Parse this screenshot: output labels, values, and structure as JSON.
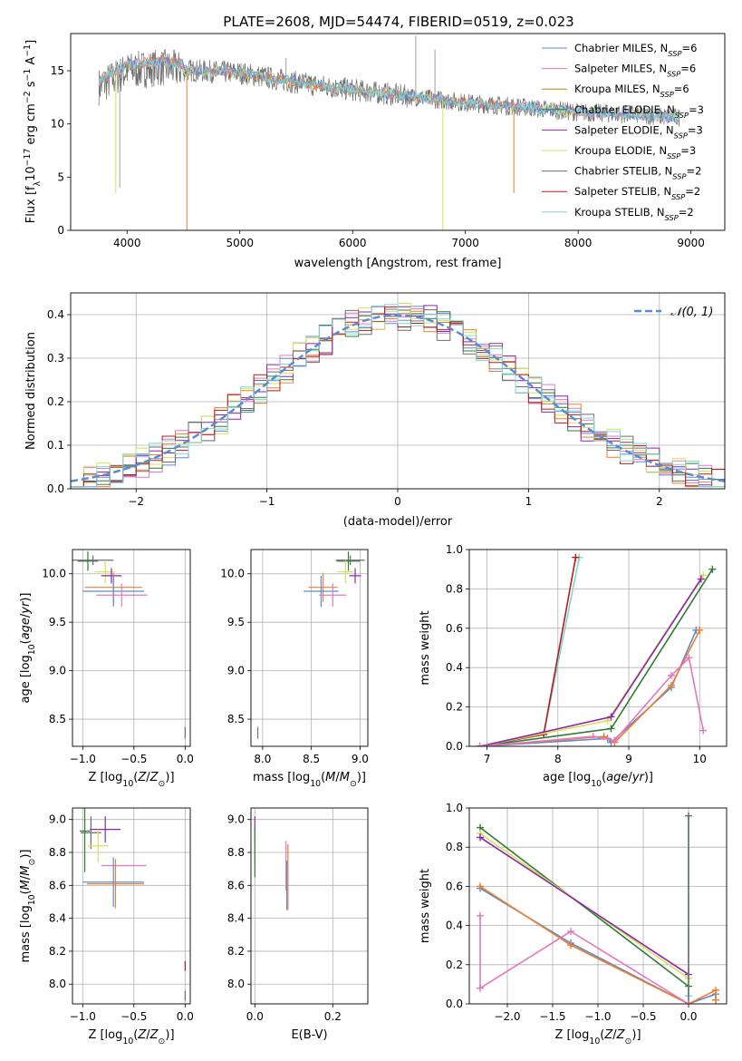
{
  "figure": {
    "title": "PLATE=2608, MJD=54474, FIBERID=0519, z=0.023"
  },
  "colors": {
    "Chabrier MILES": "#5b8bd5",
    "Salpeter MILES": "#e377c2",
    "Kroupa MILES": "#b8860b",
    "Chabrier ELODIE": "#2e7d32",
    "Salpeter ELODIE": "#8e24aa",
    "Kroupa ELODIE": "#d4e157",
    "Chabrier STELIB": "#6d6d6d",
    "Salpeter STELIB": "#b71c1c",
    "Kroupa STELIB": "#7fd6d6",
    "accent_orange": "#ef7f2a",
    "gauss": "#5b8bd5"
  },
  "chart_data": [
    {
      "id": "spectrum",
      "type": "line",
      "xlabel": "wavelength [Angstrom, rest frame]",
      "ylabel": "Flux [fλ10⁻¹⁷ erg cm⁻² s⁻¹ A⁻¹]",
      "xlim": [
        3500,
        9300
      ],
      "ylim": [
        0,
        18.5
      ],
      "xticks": [
        4000,
        5000,
        6000,
        7000,
        8000,
        9000
      ],
      "yticks": [
        0,
        5,
        10,
        15
      ],
      "grid": false,
      "legend_position": "top-right",
      "legend": [
        "Chabrier MILES, NSSP=6",
        "Salpeter MILES, NSSP=6",
        "Kroupa MILES, NSSP=6",
        "Chabrier ELODIE, NSSP=3",
        "Salpeter ELODIE, NSSP=3",
        "Kroupa ELODIE, NSSP=3",
        "Chabrier STELIB, NSSP=2",
        "Salpeter STELIB, NSSP=2",
        "Kroupa STELIB, NSSP=2"
      ],
      "continuum": {
        "x": [
          3750,
          4000,
          4300,
          4600,
          5000,
          5500,
          6000,
          6500,
          7000,
          7500,
          8000,
          8500,
          8900
        ],
        "y": [
          13.5,
          15.0,
          15.3,
          15.0,
          14.8,
          13.9,
          13.2,
          12.6,
          12.0,
          11.6,
          11.1,
          10.9,
          10.6
        ]
      },
      "model_range": [
        3750,
        8900
      ],
      "milesdip_x": [
        3900,
        4530,
        6800,
        7430
      ],
      "data_spikes": [
        {
          "x": 6560,
          "y": 18.3
        },
        {
          "x": 6730,
          "y": 17.0
        },
        {
          "x": 5410,
          "y": 16.2
        },
        {
          "x": 3935,
          "y": 4.0
        }
      ]
    },
    {
      "id": "residuals",
      "type": "step",
      "xlabel": "(data-model)/error",
      "ylabel": "Normed distribution",
      "xlim": [
        -2.5,
        2.5
      ],
      "ylim": [
        0,
        0.45
      ],
      "xticks": [
        -2,
        -1,
        0,
        1,
        2
      ],
      "yticks": [
        0.0,
        0.1,
        0.2,
        0.3,
        0.4
      ],
      "grid": true,
      "legend_position": "top-right",
      "legend": [
        "𝒩(0, 1)"
      ],
      "bin_width": 0.1
    },
    {
      "id": "age_vs_Z",
      "type": "errorbar",
      "xlabel": "Z [log10(Z/Z⊙)]",
      "ylabel": "age  [log10(age/yr)]",
      "xlim": [
        -1.1,
        0.05
      ],
      "ylim": [
        8.22,
        10.25
      ],
      "xticks": [
        -1.0,
        -0.5,
        0.0
      ],
      "xticklabels": [
        "−1.0",
        "−0.5",
        "0.0"
      ],
      "yticks": [
        8.5,
        9.0,
        9.5,
        10.0
      ],
      "grid": true,
      "points": [
        {
          "s": "Chabrier ELODIE",
          "x": -0.95,
          "y": 10.13,
          "xe": 0.1,
          "ye": 0.1
        },
        {
          "s": "Chabrier STELIB",
          "x": -0.9,
          "y": 10.14,
          "xe": 0.2,
          "ye": 0.05
        },
        {
          "s": "Kroupa ELODIE",
          "x": -0.78,
          "y": 10.02,
          "xe": 0.1,
          "ye": 0.12
        },
        {
          "s": "Salpeter ELODIE",
          "x": -0.72,
          "y": 9.98,
          "xe": 0.1,
          "ye": 0.08
        },
        {
          "s": "accent_orange",
          "x": -0.7,
          "y": 9.86,
          "xe": 0.28,
          "ye": 0.15
        },
        {
          "s": "Chabrier MILES",
          "x": -0.7,
          "y": 9.82,
          "xe": 0.3,
          "ye": 0.16
        },
        {
          "s": "Salpeter MILES",
          "x": -0.62,
          "y": 9.78,
          "xe": 0.25,
          "ye": 0.12
        },
        {
          "s": "Chabrier STELIB",
          "x": 0.0,
          "y": 8.36,
          "xe": 0.0,
          "ye": 0.06
        }
      ]
    },
    {
      "id": "age_vs_mass",
      "type": "errorbar",
      "xlabel": "mass [log10(M/M⊙)]",
      "ylabel": "",
      "xlim": [
        7.88,
        9.08
      ],
      "ylim": [
        8.22,
        10.25
      ],
      "xticks": [
        8.0,
        8.5,
        9.0
      ],
      "yticks": [
        8.5,
        9.0,
        9.5,
        10.0
      ],
      "grid": true,
      "points": [
        {
          "s": "Chabrier ELODIE",
          "x": 8.88,
          "y": 10.13,
          "xe": 0.12,
          "ye": 0.1
        },
        {
          "s": "Chabrier STELIB",
          "x": 8.9,
          "y": 10.14,
          "xe": 0.15,
          "ye": 0.05
        },
        {
          "s": "Kroupa ELODIE",
          "x": 8.85,
          "y": 10.02,
          "xe": 0.08,
          "ye": 0.12
        },
        {
          "s": "Salpeter ELODIE",
          "x": 8.95,
          "y": 9.98,
          "xe": 0.06,
          "ye": 0.08
        },
        {
          "s": "accent_orange",
          "x": 8.62,
          "y": 9.86,
          "xe": 0.15,
          "ye": 0.15
        },
        {
          "s": "Chabrier MILES",
          "x": 8.6,
          "y": 9.82,
          "xe": 0.18,
          "ye": 0.16
        },
        {
          "s": "Salpeter MILES",
          "x": 8.72,
          "y": 9.78,
          "xe": 0.14,
          "ye": 0.12
        },
        {
          "s": "Chabrier STELIB",
          "x": 7.95,
          "y": 8.36,
          "xe": 0.0,
          "ye": 0.06
        }
      ]
    },
    {
      "id": "weight_vs_age",
      "type": "line",
      "xlabel": "age  [log10(age/yr)]",
      "ylabel": "mass weight",
      "xlim": [
        6.75,
        10.38
      ],
      "ylim": [
        0,
        1.0
      ],
      "xticks": [
        7,
        8,
        9,
        10
      ],
      "yticks": [
        0.0,
        0.2,
        0.4,
        0.6,
        0.8,
        1.0
      ],
      "grid": true,
      "series": [
        {
          "s": "Kroupa STELIB",
          "x": [
            6.9,
            7.8,
            8.3
          ],
          "y": [
            0.0,
            0.06,
            0.96
          ]
        },
        {
          "s": "Salpeter STELIB",
          "x": [
            6.9,
            7.8,
            8.25
          ],
          "y": [
            0.0,
            0.06,
            0.96
          ]
        },
        {
          "s": "Chabrier ELODIE",
          "x": [
            6.9,
            8.75,
            10.18
          ],
          "y": [
            0.0,
            0.09,
            0.9
          ]
        },
        {
          "s": "Kroupa ELODIE",
          "x": [
            6.9,
            8.7,
            10.05
          ],
          "y": [
            0.0,
            0.13,
            0.87
          ]
        },
        {
          "s": "Salpeter ELODIE",
          "x": [
            6.9,
            8.75,
            10.02
          ],
          "y": [
            0.0,
            0.15,
            0.85
          ]
        },
        {
          "s": "Chabrier MILES",
          "x": [
            6.9,
            8.7,
            8.75,
            9.6,
            9.95
          ],
          "y": [
            0.0,
            0.04,
            0.02,
            0.3,
            0.59
          ]
        },
        {
          "s": "accent_orange",
          "x": [
            6.9,
            8.65,
            8.8,
            9.6,
            10.0
          ],
          "y": [
            0.0,
            0.05,
            0.02,
            0.31,
            0.59
          ]
        },
        {
          "s": "Salpeter MILES",
          "x": [
            6.9,
            8.5,
            8.8,
            9.6,
            9.85,
            10.05
          ],
          "y": [
            0.0,
            0.05,
            0.03,
            0.36,
            0.45,
            0.08
          ]
        }
      ]
    },
    {
      "id": "mass_vs_Z",
      "type": "errorbar",
      "xlabel": "Z [log10(Z/Z⊙)]",
      "ylabel": "mass [log10(M/M⊙)]",
      "xlim": [
        -1.1,
        0.05
      ],
      "ylim": [
        7.88,
        9.07
      ],
      "xticks": [
        -1.0,
        -0.5,
        0.0
      ],
      "xticklabels": [
        "−1.0",
        "−0.5",
        "0.0"
      ],
      "yticks": [
        8.0,
        8.2,
        8.4,
        8.6,
        8.8,
        9.0
      ],
      "grid": true,
      "points": [
        {
          "s": "Chabrier ELODIE",
          "x": -0.98,
          "y": 8.93,
          "xe": 0.05,
          "ye": 0.25
        },
        {
          "s": "Chabrier STELIB",
          "x": -0.92,
          "y": 8.92,
          "xe": 0.1,
          "ye": 0.1
        },
        {
          "s": "Salpeter ELODIE",
          "x": -0.78,
          "y": 8.94,
          "xe": 0.15,
          "ye": 0.08
        },
        {
          "s": "Kroupa ELODIE",
          "x": -0.85,
          "y": 8.84,
          "xe": 0.1,
          "ye": 0.1
        },
        {
          "s": "Salpeter MILES",
          "x": -0.6,
          "y": 8.72,
          "xe": 0.22,
          "ye": 0.0
        },
        {
          "s": "Chabrier MILES",
          "x": -0.7,
          "y": 8.62,
          "xe": 0.3,
          "ye": 0.15
        },
        {
          "s": "accent_orange",
          "x": -0.68,
          "y": 8.61,
          "xe": 0.28,
          "ye": 0.15
        },
        {
          "s": "Salpeter STELIB",
          "x": 0.0,
          "y": 8.11,
          "xe": 0.0,
          "ye": 0.03
        },
        {
          "s": "Chabrier STELIB",
          "x": 0.0,
          "y": 7.93,
          "xe": 0.0,
          "ye": 0.03
        }
      ]
    },
    {
      "id": "mass_vs_ebv",
      "type": "errorbar",
      "xlabel": "E(B-V)",
      "ylabel": "",
      "xlim": [
        -0.01,
        0.29
      ],
      "ylim": [
        7.88,
        9.07
      ],
      "xticks": [
        0.0,
        0.2
      ],
      "yticks": [
        8.0,
        8.2,
        8.4,
        8.6,
        8.8,
        9.0
      ],
      "grid": true,
      "points": [
        {
          "s": "Salpeter ELODIE",
          "x": 0.0,
          "y": 8.94,
          "xe": 0.0,
          "ye": 0.08
        },
        {
          "s": "Kroupa ELODIE",
          "x": 0.0,
          "y": 8.84,
          "xe": 0.0,
          "ye": 0.1
        },
        {
          "s": "Chabrier ELODIE",
          "x": 0.0,
          "y": 8.8,
          "xe": 0.0,
          "ye": 0.15
        },
        {
          "s": "Salpeter MILES",
          "x": 0.08,
          "y": 8.72,
          "xe": 0.0,
          "ye": 0.15
        },
        {
          "s": "accent_orange",
          "x": 0.085,
          "y": 8.65,
          "xe": 0.0,
          "ye": 0.2
        },
        {
          "s": "Chabrier MILES",
          "x": 0.082,
          "y": 8.6,
          "xe": 0.0,
          "ye": 0.15
        }
      ]
    },
    {
      "id": "weight_vs_Z",
      "type": "line",
      "xlabel": "Z [log10(Z/Z⊙)]",
      "ylabel": "mass weight",
      "xlim": [
        -2.42,
        0.42
      ],
      "ylim": [
        0,
        1.0
      ],
      "xticks": [
        -2.0,
        -1.5,
        -1.0,
        -0.5,
        0.0
      ],
      "xticklabels": [
        "−2.0",
        "−1.5",
        "−1.0",
        "−0.5",
        "0.0"
      ],
      "yticks": [
        0.0,
        0.2,
        0.4,
        0.6,
        0.8,
        1.0
      ],
      "grid": true,
      "series": [
        {
          "s": "Chabrier ELODIE",
          "x": [
            -2.3,
            0.0
          ],
          "y": [
            0.9,
            0.09
          ]
        },
        {
          "s": "Kroupa ELODIE",
          "x": [
            -2.3,
            0.0
          ],
          "y": [
            0.87,
            0.13
          ]
        },
        {
          "s": "Salpeter ELODIE",
          "x": [
            -2.3,
            0.0
          ],
          "y": [
            0.85,
            0.15
          ]
        },
        {
          "s": "Kroupa STELIB",
          "x": [
            0.0,
            0.0
          ],
          "y": [
            0.04,
            0.96
          ]
        },
        {
          "s": "Chabrier STELIB",
          "x": [
            0.0,
            0.0
          ],
          "y": [
            0.0,
            0.96
          ]
        },
        {
          "s": "Chabrier MILES",
          "x": [
            -2.3,
            -1.3,
            0.0,
            0.3,
            0.3
          ],
          "y": [
            0.59,
            0.31,
            0.0,
            0.05,
            0.02
          ]
        },
        {
          "s": "accent_orange",
          "x": [
            -2.3,
            -1.3,
            0.0,
            0.3,
            0.3
          ],
          "y": [
            0.6,
            0.3,
            0.0,
            0.07,
            0.02
          ]
        },
        {
          "s": "Salpeter MILES",
          "x": [
            -2.3,
            -2.3,
            -1.3,
            0.0
          ],
          "y": [
            0.45,
            0.08,
            0.37,
            0.0
          ]
        }
      ]
    }
  ]
}
